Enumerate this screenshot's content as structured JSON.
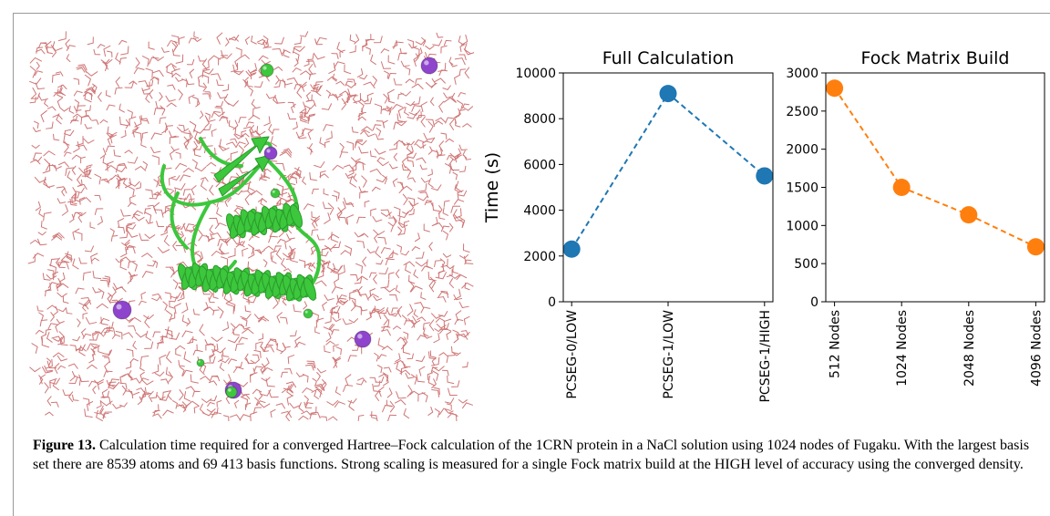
{
  "figure": {
    "label": "Figure 13.",
    "caption": "Calculation time required for a converged Hartree–Fock calculation of the 1CRN protein in a NaCl solution using 1024 nodes of Fugaku. With the largest basis set there are 8539 atoms and 69 413 basis functions. Strong scaling is measured for a single Fock matrix build at the HIGH level of accuracy using the converged density."
  },
  "chart_data": [
    {
      "type": "line",
      "title": "Full Calculation",
      "ylabel": "Time (s)",
      "xlabel": "",
      "categories": [
        "PCSEG-0/LOW",
        "PCSEG-1/LOW",
        "PCSEG-1/HIGH"
      ],
      "series": [
        {
          "values": [
            2300,
            9100,
            5500
          ],
          "color": "#1f77b4"
        }
      ],
      "ylim": [
        0,
        10000
      ],
      "yticks": [
        0,
        2000,
        4000,
        6000,
        8000,
        10000
      ],
      "grid": false
    },
    {
      "type": "line",
      "title": "Fock Matrix Build",
      "ylabel": "",
      "xlabel": "",
      "categories": [
        "512 Nodes",
        "1024 Nodes",
        "2048 Nodes",
        "4096 Nodes"
      ],
      "series": [
        {
          "values": [
            2800,
            1500,
            1140,
            720
          ],
          "color": "#ff7f0e"
        }
      ],
      "ylim": [
        0,
        3000
      ],
      "yticks": [
        0,
        500,
        1000,
        1500,
        2000,
        2500,
        3000
      ],
      "grid": false
    }
  ],
  "molecule": {
    "protein_color": "#3cc73c",
    "water_color": "#c04848",
    "ion_colors": {
      "sodium": "#8e44cc",
      "chloride": "#3cc73c"
    }
  }
}
